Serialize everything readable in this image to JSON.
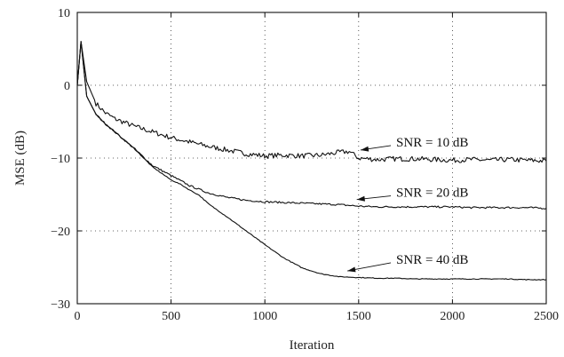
{
  "chart_data": {
    "type": "line",
    "title": "",
    "xlabel": "Iteration",
    "ylabel": "MSE (dB)",
    "xlim": [
      0,
      2500
    ],
    "ylim": [
      -30,
      10
    ],
    "xticks": [
      0,
      500,
      1000,
      1500,
      2000,
      2500
    ],
    "yticks": [
      -30,
      -20,
      -10,
      0,
      10
    ],
    "xtick_labels": [
      "0",
      "500",
      "1000",
      "1500",
      "2000",
      "2500"
    ],
    "ytick_labels": [
      "−30",
      "−20",
      "−10",
      "0",
      "10"
    ],
    "grid": true,
    "legend": "none",
    "series": [
      {
        "x": [
          0,
          20,
          50,
          100,
          150,
          200,
          300,
          400,
          500,
          600,
          700,
          800,
          900,
          1000,
          1100,
          1200,
          1300,
          1400,
          1450,
          1500,
          1600,
          1700,
          1800,
          1900,
          2000,
          2100,
          2200,
          2300,
          2400,
          2500
        ],
        "y": [
          0,
          6,
          0.5,
          -2.5,
          -3.8,
          -4.6,
          -5.6,
          -6.4,
          -7.2,
          -7.8,
          -8.4,
          -8.9,
          -9.4,
          -9.7,
          -9.6,
          -9.7,
          -9.6,
          -9.2,
          -9.1,
          -10.0,
          -10.2,
          -10.1,
          -10.1,
          -10.2,
          -10.3,
          -10.2,
          -10.3,
          -10.2,
          -10.3,
          -10.4
        ],
        "noise": 0.35
      },
      {
        "x": [
          0,
          20,
          50,
          100,
          150,
          200,
          300,
          400,
          500,
          600,
          700,
          800,
          900,
          1000,
          1100,
          1200,
          1300,
          1400,
          1500,
          1600,
          1700,
          1800,
          1900,
          2000,
          2100,
          2200,
          2300,
          2400,
          2500
        ],
        "y": [
          0,
          6,
          -1.5,
          -4.0,
          -5.3,
          -6.4,
          -8.6,
          -11.0,
          -12.4,
          -13.8,
          -14.8,
          -15.4,
          -15.8,
          -16.0,
          -16.1,
          -16.2,
          -16.3,
          -16.4,
          -16.6,
          -16.7,
          -16.7,
          -16.7,
          -16.7,
          -16.7,
          -16.8,
          -16.8,
          -16.8,
          -16.8,
          -16.9
        ],
        "noise": 0.12
      },
      {
        "x": [
          0,
          20,
          50,
          100,
          150,
          200,
          300,
          400,
          500,
          550,
          600,
          650,
          700,
          800,
          900,
          1000,
          1100,
          1200,
          1300,
          1400,
          1500,
          1600,
          1700,
          1800,
          1900,
          2000,
          2100,
          2200,
          2300,
          2400,
          2500
        ],
        "y": [
          0,
          6,
          -1.5,
          -4.0,
          -5.3,
          -6.4,
          -8.6,
          -11.2,
          -13.0,
          -13.6,
          -14.4,
          -15.1,
          -16.3,
          -18.1,
          -20.0,
          -21.9,
          -23.7,
          -25.1,
          -25.9,
          -26.3,
          -26.4,
          -26.5,
          -26.5,
          -26.6,
          -26.6,
          -26.6,
          -26.6,
          -26.6,
          -26.6,
          -26.7,
          -26.7
        ],
        "noise": 0.05
      }
    ],
    "annotations": [
      {
        "text": "SNR = 10 dB",
        "data_x": 1510,
        "data_y": -8.9,
        "label_x": 1700,
        "label_y": -7.8
      },
      {
        "text": "SNR = 20 dB",
        "data_x": 1490,
        "data_y": -15.7,
        "label_x": 1700,
        "label_y": -14.7
      },
      {
        "text": "SNR = 40 dB",
        "data_x": 1440,
        "data_y": -25.5,
        "label_x": 1700,
        "label_y": -23.9
      }
    ]
  }
}
